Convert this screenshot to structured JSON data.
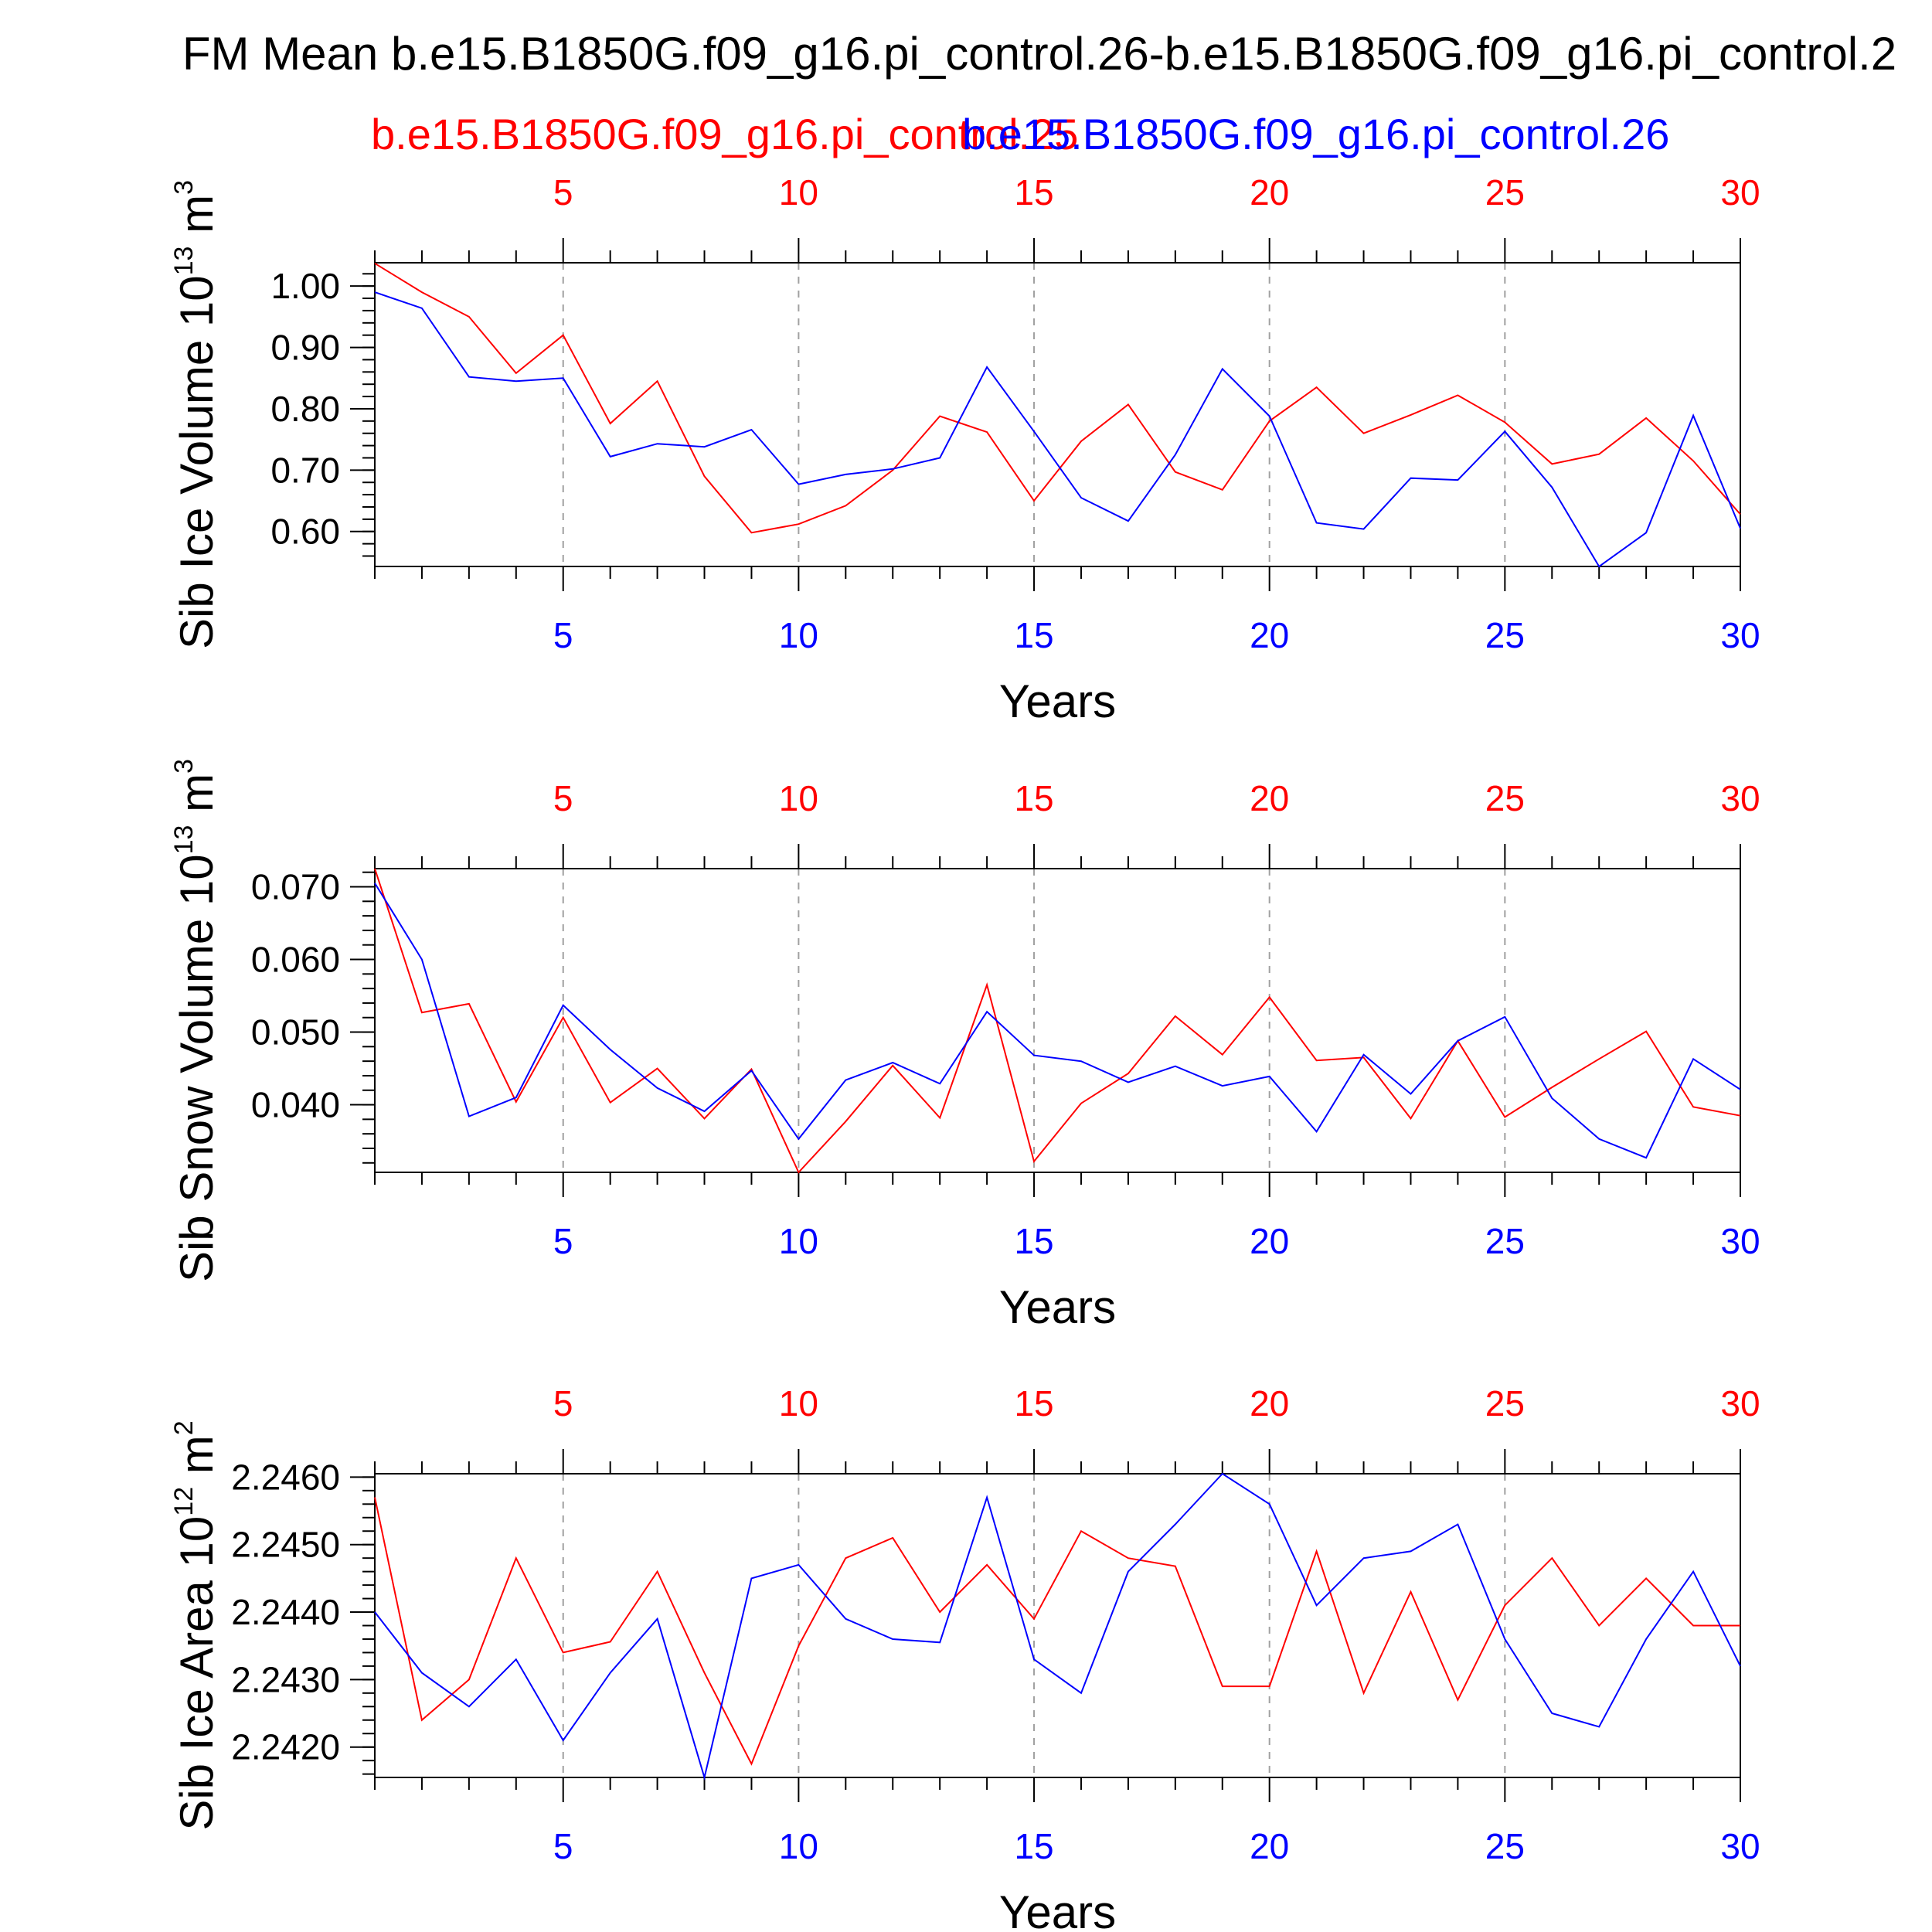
{
  "title": "FM Mean b.e15.B1850G.f09_g16.pi_control.26-b.e15.B1850G.f09_g16.pi_control.2",
  "legend": {
    "red_label": "b.e15.B1850G.f09_g16.pi_control.25",
    "blue_label": "b.e15.B1850G.f09_g16.pi_control.26"
  },
  "colors": {
    "red": "#ff0000",
    "blue": "#0000ff",
    "axis": "#000000",
    "grid": "#a0a0a0"
  },
  "chart_data": [
    {
      "type": "line",
      "ylabel": "Sib Ice Volume 10",
      "ylabel_exp": "13",
      "ylabel_unit": " m",
      "ylabel_unit_exp": "3",
      "xlabel": "Years",
      "xlim": [
        1,
        30
      ],
      "ylim": [
        0.543,
        1.038
      ],
      "ytick_values": [
        0.6,
        0.7,
        0.8,
        0.9,
        1.0
      ],
      "ytick_labels": [
        "0.60",
        "0.70",
        "0.80",
        "0.90",
        "1.00"
      ],
      "yminor_step": 0.02,
      "xtick_values": [
        5,
        10,
        15,
        20,
        25,
        30
      ],
      "xtick_labels": [
        "5",
        "10",
        "15",
        "20",
        "25",
        "30"
      ],
      "x": [
        1,
        2,
        3,
        4,
        5,
        6,
        7,
        8,
        9,
        10,
        11,
        12,
        13,
        14,
        15,
        16,
        17,
        18,
        19,
        20,
        21,
        22,
        23,
        24,
        25,
        26,
        27,
        28,
        29,
        30
      ],
      "series": [
        {
          "name": "b.e15.B1850G.f09_g16.pi_control.25",
          "color": "red",
          "values": [
            1.037,
            0.99,
            0.95,
            0.858,
            0.92,
            0.776,
            0.845,
            0.69,
            0.598,
            0.612,
            0.642,
            0.7,
            0.788,
            0.762,
            0.65,
            0.747,
            0.807,
            0.697,
            0.668,
            0.78,
            0.835,
            0.76,
            0.79,
            0.822,
            0.778,
            0.71,
            0.726,
            0.785,
            0.715,
            0.628
          ]
        },
        {
          "name": "b.e15.B1850G.f09_g16.pi_control.26",
          "color": "blue",
          "values": [
            0.99,
            0.964,
            0.852,
            0.845,
            0.85,
            0.722,
            0.743,
            0.738,
            0.766,
            0.677,
            0.693,
            0.702,
            0.72,
            0.868,
            0.763,
            0.655,
            0.617,
            0.725,
            0.865,
            0.788,
            0.614,
            0.604,
            0.687,
            0.684,
            0.763,
            0.672,
            0.543,
            0.598,
            0.789,
            0.605
          ]
        }
      ]
    },
    {
      "type": "line",
      "ylabel": "Sib Snow Volume 10",
      "ylabel_exp": "13",
      "ylabel_unit": " m",
      "ylabel_unit_exp": "3",
      "xlabel": "Years",
      "xlim": [
        1,
        30
      ],
      "ylim": [
        0.0307,
        0.0725
      ],
      "ytick_values": [
        0.04,
        0.05,
        0.06,
        0.07
      ],
      "ytick_labels": [
        "0.040",
        "0.050",
        "0.060",
        "0.070"
      ],
      "yminor_step": 0.002,
      "xtick_values": [
        5,
        10,
        15,
        20,
        25,
        30
      ],
      "xtick_labels": [
        "5",
        "10",
        "15",
        "20",
        "25",
        "30"
      ],
      "x": [
        1,
        2,
        3,
        4,
        5,
        6,
        7,
        8,
        9,
        10,
        11,
        12,
        13,
        14,
        15,
        16,
        17,
        18,
        19,
        20,
        21,
        22,
        23,
        24,
        25,
        26,
        27,
        28,
        29,
        30
      ],
      "series": [
        {
          "name": "b.e15.B1850G.f09_g16.pi_control.25",
          "color": "red",
          "values": [
            0.0725,
            0.0527,
            0.0539,
            0.0404,
            0.052,
            0.0403,
            0.045,
            0.0381,
            0.0449,
            0.0307,
            0.0377,
            0.0454,
            0.0382,
            0.0565,
            0.0322,
            0.0402,
            0.0443,
            0.0522,
            0.0469,
            0.0548,
            0.0461,
            0.0465,
            0.0381,
            0.0488,
            0.0383,
            0.0424,
            0.0463,
            0.0501,
            0.0397,
            0.0385
          ]
        },
        {
          "name": "b.e15.B1850G.f09_g16.pi_control.26",
          "color": "blue",
          "values": [
            0.0705,
            0.06,
            0.0384,
            0.041,
            0.0537,
            0.0476,
            0.0423,
            0.0391,
            0.0447,
            0.0353,
            0.0434,
            0.0458,
            0.0429,
            0.0528,
            0.0468,
            0.046,
            0.0431,
            0.0453,
            0.0426,
            0.0439,
            0.0363,
            0.0469,
            0.0415,
            0.0488,
            0.0521,
            0.0409,
            0.0353,
            0.0327,
            0.0463,
            0.0421
          ]
        }
      ]
    },
    {
      "type": "line",
      "ylabel": "Sib Ice Area 10",
      "ylabel_exp": "12",
      "ylabel_unit": " m",
      "ylabel_unit_exp": "2",
      "xlabel": "Years",
      "xlim": [
        1,
        30
      ],
      "ylim": [
        2.24155,
        2.24605
      ],
      "ytick_values": [
        2.242,
        2.243,
        2.244,
        2.245,
        2.246
      ],
      "ytick_labels": [
        "2.2420",
        "2.2430",
        "2.2440",
        "2.2450",
        "2.2460"
      ],
      "yminor_step": 0.0002,
      "xtick_values": [
        5,
        10,
        15,
        20,
        25,
        30
      ],
      "xtick_labels": [
        "5",
        "10",
        "15",
        "20",
        "25",
        "30"
      ],
      "x": [
        1,
        2,
        3,
        4,
        5,
        6,
        7,
        8,
        9,
        10,
        11,
        12,
        13,
        14,
        15,
        16,
        17,
        18,
        19,
        20,
        21,
        22,
        23,
        24,
        25,
        26,
        27,
        28,
        29,
        30
      ],
      "series": [
        {
          "name": "b.e15.B1850G.f09_g16.pi_control.25",
          "color": "red",
          "values": [
            2.2457,
            2.2424,
            2.243,
            2.2448,
            2.2434,
            2.24356,
            2.2446,
            2.2431,
            2.24175,
            2.2435,
            2.2448,
            2.2451,
            2.244,
            2.2447,
            2.2439,
            2.2452,
            2.2448,
            2.24468,
            2.2429,
            2.2429,
            2.2449,
            2.2428,
            2.2443,
            2.2427,
            2.2441,
            2.2448,
            2.2438,
            2.2445,
            2.2438,
            2.2438
          ]
        },
        {
          "name": "b.e15.B1850G.f09_g16.pi_control.26",
          "color": "blue",
          "values": [
            2.244,
            2.2431,
            2.2426,
            2.2433,
            2.2421,
            2.2431,
            2.2439,
            2.24155,
            2.2445,
            2.2447,
            2.2439,
            2.2436,
            2.24355,
            2.2457,
            2.2433,
            2.2428,
            2.2446,
            2.2453,
            2.24605,
            2.2456,
            2.2441,
            2.2448,
            2.2449,
            2.2453,
            2.2436,
            2.2425,
            2.2423,
            2.2436,
            2.2446,
            2.2432
          ]
        }
      ]
    }
  ]
}
